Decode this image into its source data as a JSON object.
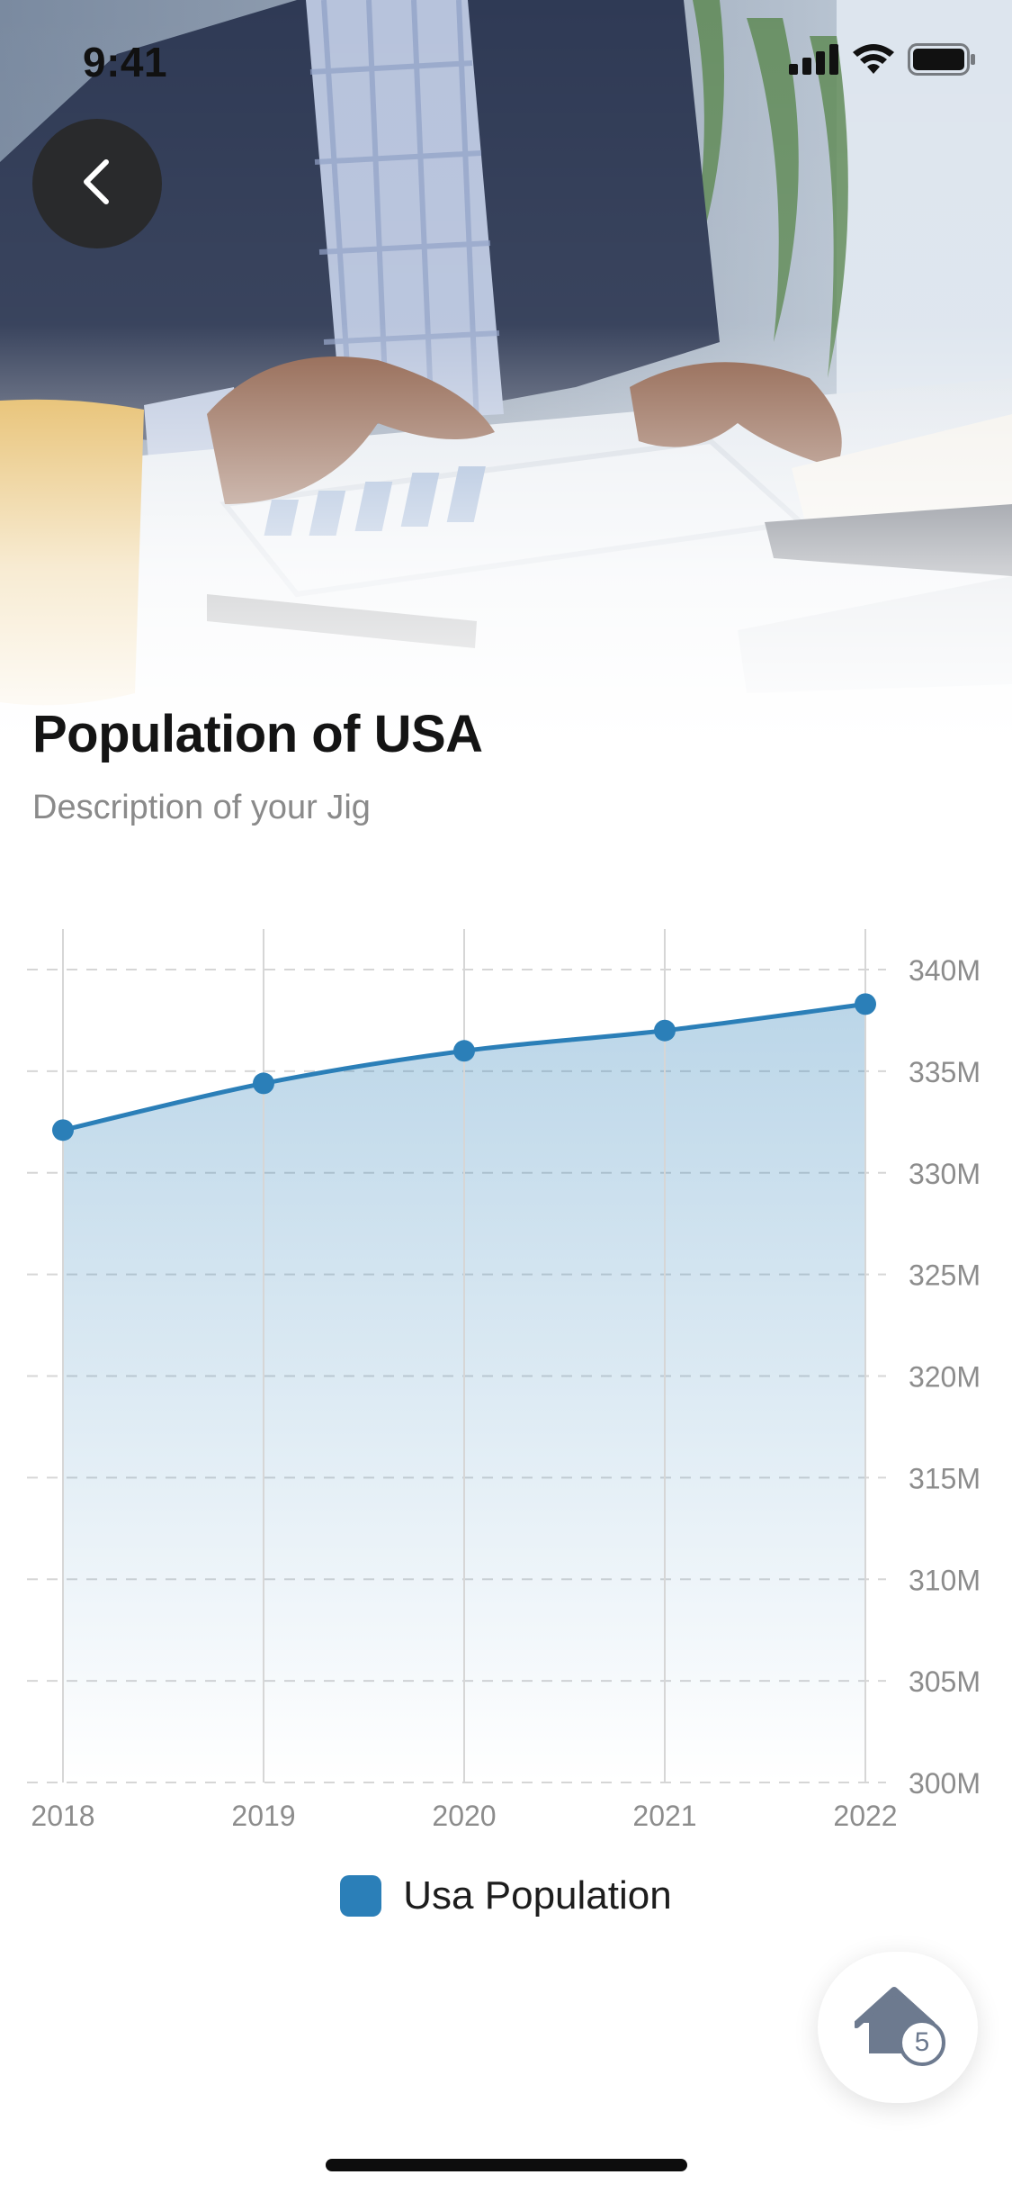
{
  "status_bar": {
    "time": "9:41"
  },
  "header": {
    "title": "Population of USA",
    "description": "Description of your Jig",
    "back_icon": "chevron-left-icon"
  },
  "colors": {
    "series": "#2b7fb8",
    "grid": "#d6d6d6",
    "axis_text": "#8c8c8c",
    "back_button_bg": "#282828"
  },
  "chart_data": {
    "type": "area",
    "x": [
      "2018",
      "2019",
      "2020",
      "2021",
      "2022"
    ],
    "series": [
      {
        "name": "Usa Population",
        "values": [
          332.1,
          334.4,
          336.0,
          337.0,
          338.3
        ]
      }
    ],
    "ylim": [
      300,
      340
    ],
    "yticks": [
      300,
      305,
      310,
      315,
      320,
      325,
      330,
      335,
      340
    ],
    "ytick_labels": [
      "300M",
      "305M",
      "310M",
      "315M",
      "320M",
      "325M",
      "330M",
      "335M",
      "340M"
    ],
    "y_axis_position": "right",
    "grid": true,
    "legend": "bottom-center"
  },
  "legend": {
    "label": "Usa Population"
  },
  "fab": {
    "icon": "home-icon",
    "badge": "5"
  }
}
